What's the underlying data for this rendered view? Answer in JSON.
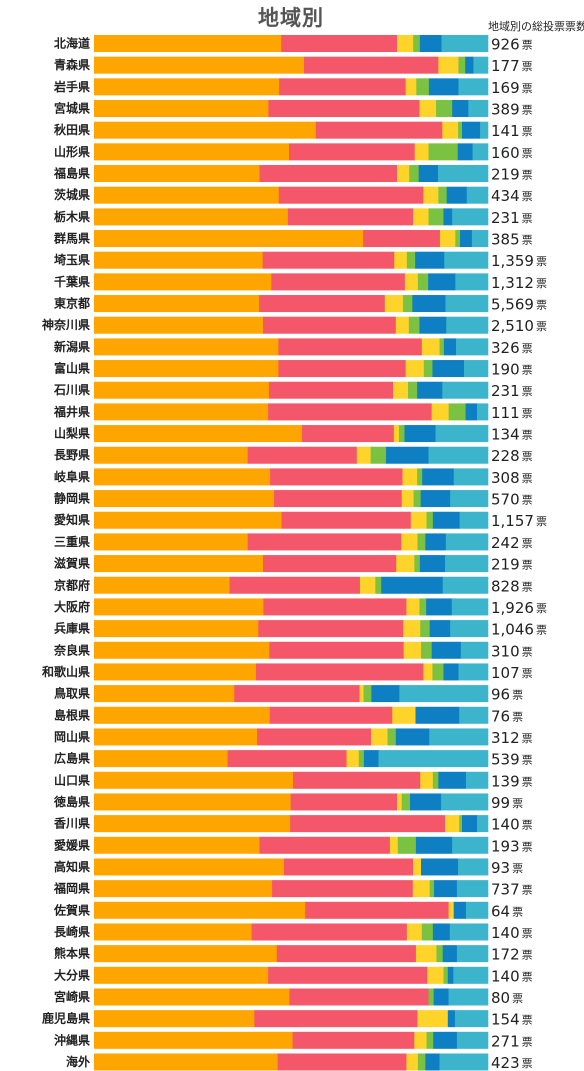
{
  "chart_data": {
    "type": "bar",
    "title": "地域別",
    "value_column_header": "地域別の総投票票数",
    "unit": "票",
    "stacked": true,
    "segment_colors": [
      "#ffa500",
      "#f4566a",
      "#ffd42a",
      "#7cc242",
      "#0d7fc2",
      "#3bb4cc"
    ],
    "categories": [
      "北海道",
      "青森県",
      "岩手県",
      "宮城県",
      "秋田県",
      "山形県",
      "福島県",
      "茨城県",
      "栃木県",
      "群馬県",
      "埼玉県",
      "千葉県",
      "東京都",
      "神奈川県",
      "新潟県",
      "富山県",
      "石川県",
      "福井県",
      "山梨県",
      "長野県",
      "岐阜県",
      "静岡県",
      "愛知県",
      "三重県",
      "滋賀県",
      "京都府",
      "大阪府",
      "兵庫県",
      "奈良県",
      "和歌山県",
      "鳥取県",
      "島根県",
      "岡山県",
      "広島県",
      "山口県",
      "徳島県",
      "香川県",
      "愛媛県",
      "高知県",
      "福岡県",
      "佐賀県",
      "長崎県",
      "熊本県",
      "大分県",
      "宮崎県",
      "鹿児島県",
      "沖縄県",
      "海外"
    ],
    "totals": [
      "926",
      "177",
      "169",
      "389",
      "141",
      "160",
      "219",
      "434",
      "231",
      "385",
      "1,359",
      "1,312",
      "5,569",
      "2,510",
      "326",
      "190",
      "231",
      "111",
      "134",
      "228",
      "308",
      "570",
      "1,157",
      "242",
      "219",
      "828",
      "1,926",
      "1,046",
      "310",
      "107",
      "96",
      "76",
      "312",
      "539",
      "139",
      "99",
      "140",
      "193",
      "93",
      "737",
      "64",
      "140",
      "172",
      "140",
      "80",
      "154",
      "271",
      "423"
    ],
    "segments": [
      [
        47.5,
        29.4,
        4.1,
        1.7,
        5.5,
        11.8
      ],
      [
        53.3,
        34.1,
        5.1,
        1.7,
        2.1,
        3.7
      ],
      [
        47.0,
        32.1,
        2.7,
        3.2,
        7.5,
        7.5
      ],
      [
        44.3,
        38.4,
        4.2,
        4.1,
        4.1,
        5.0
      ],
      [
        56.3,
        32.1,
        4.0,
        1.0,
        4.6,
        2.0
      ],
      [
        49.5,
        31.9,
        3.5,
        7.4,
        3.8,
        3.9
      ],
      [
        42.0,
        34.9,
        3.1,
        2.4,
        4.9,
        12.7
      ],
      [
        46.9,
        36.7,
        3.8,
        2.1,
        5.1,
        5.4
      ],
      [
        49.2,
        31.8,
        3.9,
        3.8,
        2.2,
        9.1
      ],
      [
        68.3,
        19.5,
        3.9,
        1.2,
        3.0,
        4.1
      ],
      [
        42.8,
        33.4,
        3.2,
        2.1,
        7.4,
        11.1
      ],
      [
        45.0,
        33.9,
        3.3,
        2.6,
        6.9,
        8.3
      ],
      [
        41.9,
        31.9,
        4.6,
        2.4,
        8.4,
        10.8
      ],
      [
        42.9,
        33.7,
        3.3,
        2.7,
        6.8,
        10.6
      ],
      [
        46.8,
        36.4,
        4.5,
        1.1,
        3.1,
        8.1
      ],
      [
        46.8,
        32.3,
        4.6,
        2.2,
        8.0,
        6.1
      ],
      [
        44.4,
        31.5,
        3.8,
        2.3,
        6.4,
        11.6
      ],
      [
        44.2,
        41.5,
        4.3,
        4.3,
        2.9,
        2.8
      ],
      [
        52.8,
        23.3,
        1.3,
        1.4,
        7.9,
        13.3
      ],
      [
        39.0,
        27.7,
        3.5,
        3.9,
        10.8,
        15.1
      ],
      [
        44.7,
        33.6,
        3.7,
        1.3,
        8.0,
        8.7
      ],
      [
        45.7,
        32.4,
        3.0,
        1.8,
        7.5,
        9.6
      ],
      [
        47.6,
        32.8,
        4.0,
        1.6,
        6.8,
        7.2
      ],
      [
        39.0,
        39.0,
        4.1,
        2.0,
        5.2,
        10.7
      ],
      [
        42.9,
        33.8,
        4.6,
        1.4,
        6.4,
        10.9
      ],
      [
        34.4,
        33.1,
        3.9,
        1.5,
        15.6,
        11.5
      ],
      [
        43.0,
        36.3,
        3.3,
        1.7,
        6.5,
        9.2
      ],
      [
        41.7,
        36.8,
        4.3,
        2.4,
        5.2,
        9.6
      ],
      [
        44.5,
        34.1,
        4.4,
        2.7,
        7.4,
        6.9
      ],
      [
        41.1,
        42.5,
        2.3,
        2.8,
        3.8,
        7.5
      ],
      [
        35.6,
        31.8,
        1.0,
        2.0,
        7.1,
        22.5
      ],
      [
        44.6,
        31.1,
        5.9,
        0.0,
        11.1,
        7.3
      ],
      [
        41.4,
        28.9,
        4.2,
        2.1,
        8.5,
        14.9
      ],
      [
        33.9,
        30.2,
        3.1,
        1.3,
        3.7,
        27.8
      ],
      [
        50.5,
        32.3,
        3.2,
        1.4,
        7.0,
        5.6
      ],
      [
        49.9,
        27.0,
        1.2,
        2.1,
        7.9,
        11.9
      ],
      [
        49.8,
        39.3,
        3.6,
        0.7,
        3.8,
        2.8
      ],
      [
        42.0,
        33.1,
        2.0,
        4.6,
        9.2,
        9.1
      ],
      [
        48.2,
        32.8,
        2.0,
        0.0,
        9.4,
        7.6
      ],
      [
        45.2,
        35.7,
        4.3,
        1.1,
        5.8,
        7.9
      ],
      [
        53.6,
        36.4,
        1.3,
        0.0,
        3.1,
        5.6
      ],
      [
        40.0,
        39.4,
        3.8,
        2.8,
        4.3,
        9.7
      ],
      [
        46.4,
        35.3,
        5.2,
        1.6,
        3.6,
        7.9
      ],
      [
        44.2,
        40.4,
        4.1,
        1.1,
        1.4,
        8.8
      ],
      [
        49.6,
        35.3,
        0.0,
        1.3,
        3.8,
        10.0
      ],
      [
        40.7,
        41.4,
        7.7,
        0.0,
        1.8,
        8.4
      ],
      [
        50.4,
        30.9,
        3.1,
        1.7,
        6.0,
        7.9
      ],
      [
        46.6,
        32.7,
        2.9,
        1.9,
        3.6,
        12.3
      ]
    ]
  }
}
